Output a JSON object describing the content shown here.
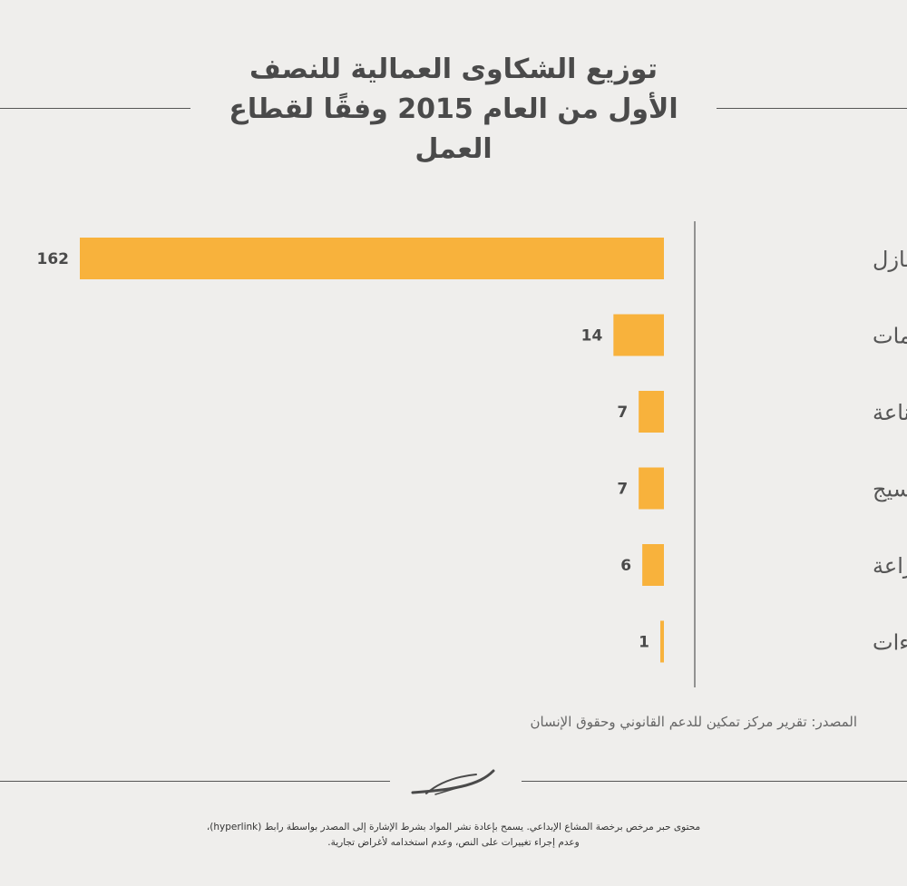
{
  "title": {
    "line1": "توزيع الشكاوى العمالية للنصف",
    "line2": "الأول من العام 2015 وفقًا لقطاع العمل"
  },
  "source": "المصدر: تقرير مركز تمكين للدعم القانوني وحقوق الإنسان",
  "license": {
    "line1": "محتوى حبر مرخص برخصة المشاع الإبداعي. يسمح بإعادة نشر المواد بشرط الإشارة إلى المصدر بواسطة رابط (hyperlink)،",
    "line2": "وعدم إجراء تغييرات على النص، وعدم استخدامه لأغراض تجارية."
  },
  "colors": {
    "bar": "#f8b23c",
    "background": "#efeeec",
    "text": "#4a4a4a"
  },
  "logo_icon": "hibr-logo-icon",
  "chart_data": {
    "type": "bar",
    "orientation": "horizontal",
    "title": "توزيع الشكاوى العمالية للنصف الأول من العام 2015 وفقًا لقطاع العمل",
    "categories": [
      "عاملات المنازل",
      "الخدمات",
      "الصناعة",
      "الغزل والنسيج",
      "الزراعة",
      "الإنشاءات"
    ],
    "values": [
      162,
      14,
      7,
      7,
      6,
      1
    ],
    "xlim": [
      0,
      162
    ],
    "grid": false,
    "legend": "none"
  }
}
